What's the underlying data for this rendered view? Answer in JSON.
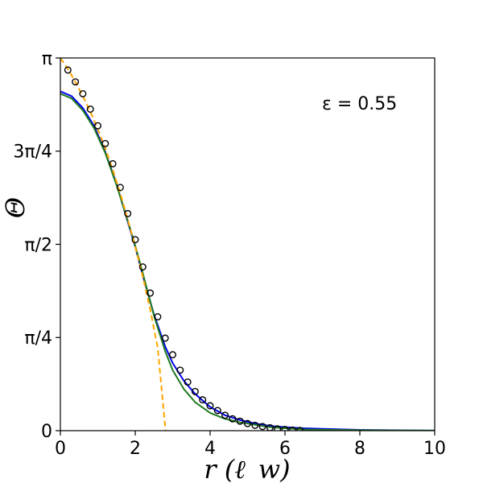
{
  "chart_data": {
    "type": "line",
    "title": "",
    "xlabel": "r (ℓ_w)",
    "ylabel": "Θ",
    "xlim": [
      0,
      10
    ],
    "ylim": [
      0,
      3.14159
    ],
    "grid": false,
    "legend": "none",
    "x_ticks": [
      0,
      2,
      4,
      6,
      8,
      10
    ],
    "x_tick_labels": [
      "0",
      "2",
      "4",
      "6",
      "8",
      "10"
    ],
    "y_ticks": [
      0,
      0.7854,
      1.5708,
      2.3562,
      3.14159
    ],
    "y_tick_labels": [
      "0",
      "π/4",
      "π/2",
      "3π/4",
      "π"
    ],
    "annotation": "ε = 0.55",
    "series": [
      {
        "style": "solid",
        "color": "#0000ee",
        "x": [
          0,
          0.3,
          0.6,
          0.9,
          1.2,
          1.5,
          1.8,
          2.0,
          2.2,
          2.5,
          2.8,
          3.0,
          3.3,
          3.6,
          4.0,
          4.4,
          4.8,
          5.2,
          5.6,
          6.0,
          6.5,
          7.0,
          8.0,
          9.0,
          10.0
        ],
        "y": [
          2.86,
          2.82,
          2.72,
          2.57,
          2.35,
          2.08,
          1.76,
          1.55,
          1.31,
          0.98,
          0.71,
          0.57,
          0.42,
          0.31,
          0.2,
          0.13,
          0.09,
          0.06,
          0.04,
          0.03,
          0.02,
          0.015,
          0.007,
          0.003,
          0.001
        ]
      },
      {
        "style": "solid",
        "color": "#1f7a1f",
        "x": [
          0,
          0.3,
          0.6,
          0.9,
          1.2,
          1.5,
          1.8,
          2.0,
          2.2,
          2.5,
          2.8,
          3.0,
          3.3,
          3.6,
          4.0,
          4.4,
          4.8,
          5.2,
          5.6,
          6.0,
          6.5,
          7.0,
          8.0,
          9.0,
          10.0
        ],
        "y": [
          2.84,
          2.8,
          2.7,
          2.55,
          2.34,
          2.07,
          1.77,
          1.56,
          1.33,
          0.97,
          0.67,
          0.51,
          0.35,
          0.24,
          0.15,
          0.1,
          0.07,
          0.05,
          0.03,
          0.02,
          0.01,
          0.008,
          0.004,
          0.002,
          0.001
        ]
      },
      {
        "style": "dashed",
        "color": "#ffa500",
        "x": [
          0,
          0.2,
          0.4,
          0.6,
          0.8,
          1.0,
          1.2,
          1.4,
          1.6,
          1.8,
          2.0,
          2.2,
          2.4,
          2.6,
          2.81
        ],
        "y": [
          3.14,
          3.05,
          2.94,
          2.82,
          2.69,
          2.54,
          2.38,
          2.2,
          2.0,
          1.78,
          1.55,
          1.3,
          1.02,
          0.7,
          0.0
        ]
      },
      {
        "style": "markers",
        "color": "#000000",
        "x": [
          0.2,
          0.4,
          0.6,
          0.8,
          1.0,
          1.2,
          1.4,
          1.6,
          1.8,
          2.0,
          2.2,
          2.4,
          2.6,
          2.8,
          3.0,
          3.2,
          3.4,
          3.6,
          3.8,
          4.0,
          4.2,
          4.4,
          4.6,
          4.8,
          5.0,
          5.2,
          5.4,
          5.6,
          5.8,
          6.0,
          6.2,
          6.4
        ],
        "y": [
          3.04,
          2.94,
          2.84,
          2.71,
          2.57,
          2.42,
          2.25,
          2.05,
          1.83,
          1.61,
          1.38,
          1.16,
          0.96,
          0.78,
          0.64,
          0.51,
          0.41,
          0.33,
          0.26,
          0.21,
          0.17,
          0.13,
          0.1,
          0.08,
          0.06,
          0.045,
          0.035,
          0.025,
          0.015,
          0.01,
          0.005,
          0.002
        ]
      }
    ]
  }
}
